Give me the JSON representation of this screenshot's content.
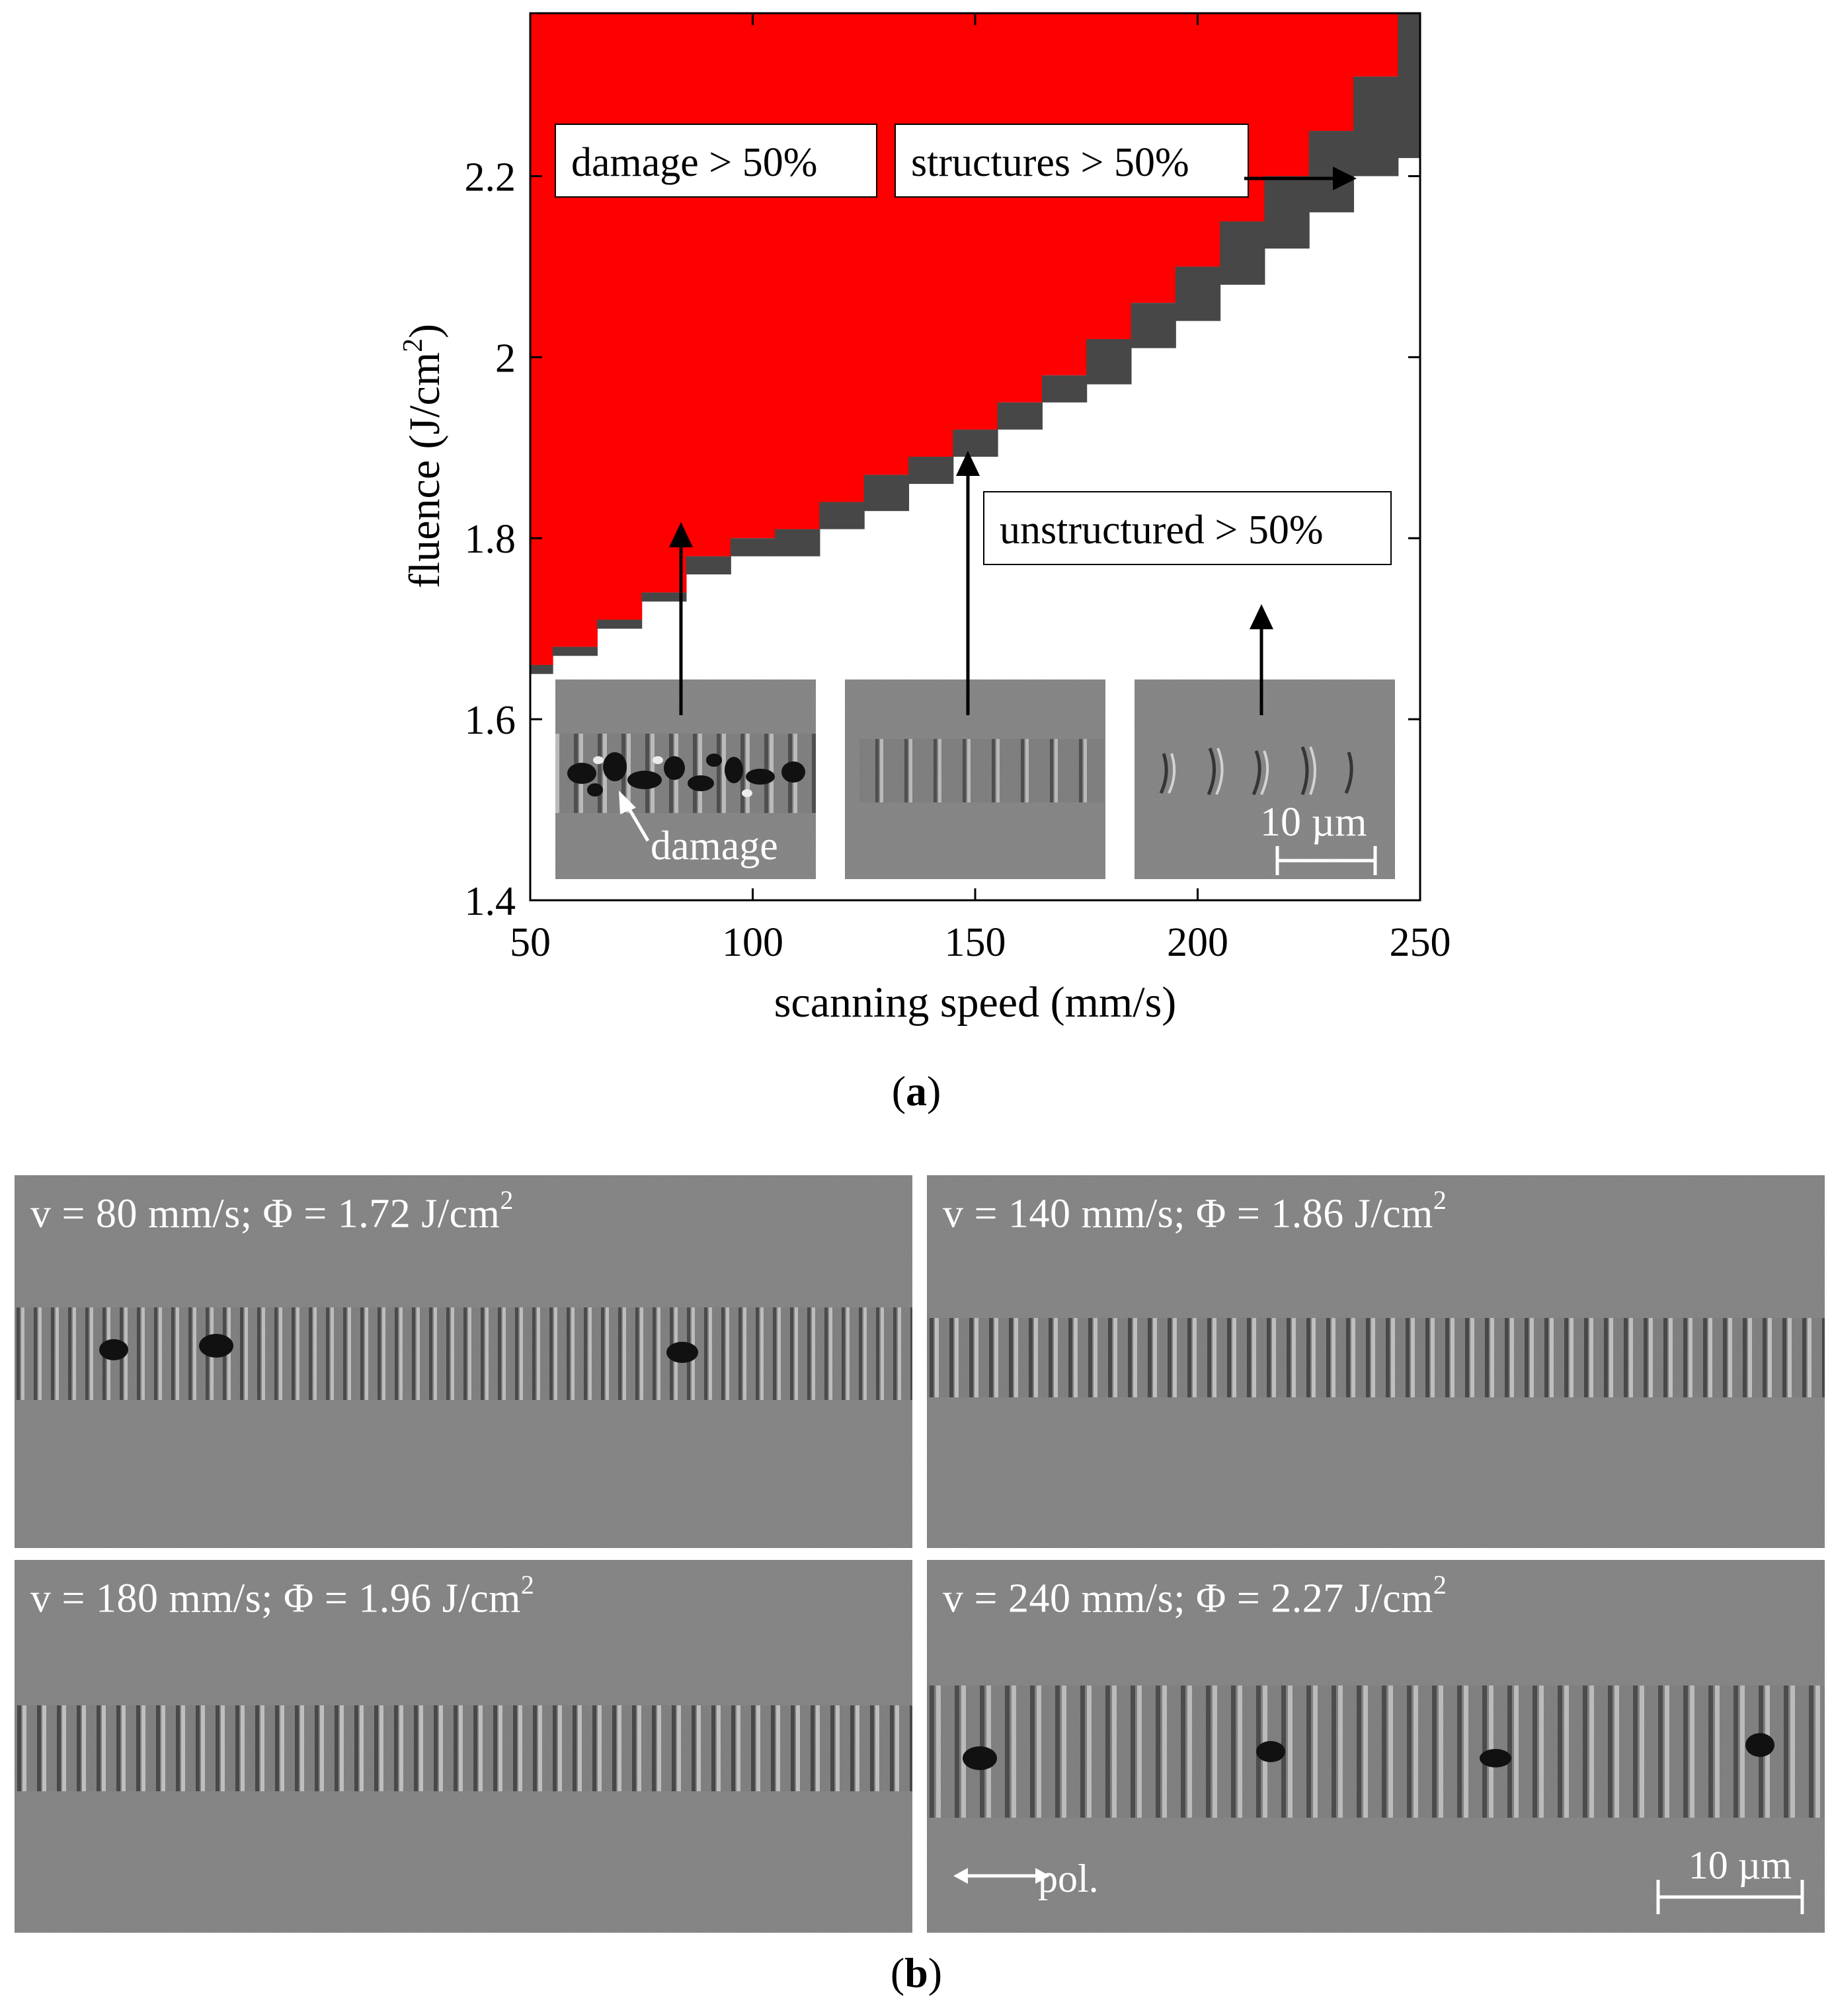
{
  "panel_a": {
    "caption_label": "a",
    "chart_data": {
      "type": "heatmap",
      "xlabel": "scanning speed (mm/s)",
      "ylabel": "fluence (J/cm2)",
      "ylabel_main": "fluence (J/cm",
      "ylabel_sup": "2",
      "ylabel_close": ")",
      "xlim": [
        50,
        250
      ],
      "ylim": [
        1.4,
        2.38
      ],
      "xticks": [
        50,
        100,
        150,
        200,
        250
      ],
      "xtick_labels": [
        "50",
        "100",
        "150",
        "200",
        "250"
      ],
      "yticks": [
        1.4,
        1.6,
        1.8,
        2.0,
        2.2
      ],
      "ytick_labels": [
        "1.4",
        "1.6",
        "1.8",
        "2",
        "2.2"
      ],
      "regions": [
        {
          "name": "damage > 50%",
          "color": "#ff0000"
        },
        {
          "name": "structures > 50%",
          "color": "#474747"
        },
        {
          "name": "unstructured > 50%",
          "color": "#ffffff"
        }
      ],
      "boundary_speed": [
        50,
        60,
        70,
        80,
        90,
        100,
        110,
        120,
        130,
        140,
        150,
        160,
        170,
        180,
        190,
        200,
        210,
        220,
        230,
        240,
        250
      ],
      "damage_threshold_fluence": [
        1.66,
        1.68,
        1.71,
        1.74,
        1.78,
        1.8,
        1.81,
        1.84,
        1.87,
        1.89,
        1.92,
        1.95,
        1.98,
        2.02,
        2.06,
        2.1,
        2.15,
        2.2,
        2.25,
        2.31,
        2.38
      ],
      "structure_threshold_fluence": [
        1.65,
        1.67,
        1.7,
        1.73,
        1.76,
        1.78,
        1.78,
        1.81,
        1.83,
        1.86,
        1.89,
        1.92,
        1.95,
        1.97,
        2.01,
        2.04,
        2.08,
        2.12,
        2.16,
        2.2,
        2.22
      ],
      "annotations": [
        "damage > 50%",
        "structures > 50%",
        "unstructured > 50%"
      ],
      "inset_labels": {
        "damage": "damage",
        "scale": "10 µm"
      }
    }
  },
  "panel_b": {
    "caption_label": "b",
    "images": [
      {
        "v": "v = 80 mm/s; Φ = 1.72 J/cm",
        "sup": "2"
      },
      {
        "v": "v = 140 mm/s; Φ = 1.86 J/cm",
        "sup": "2"
      },
      {
        "v": "v = 180 mm/s; Φ = 1.96 J/cm",
        "sup": "2"
      },
      {
        "v": "v = 240 mm/s; Φ = 2.27 J/cm",
        "sup": "2"
      }
    ],
    "pol_label": "pol.",
    "scale_label": "10 µm"
  }
}
